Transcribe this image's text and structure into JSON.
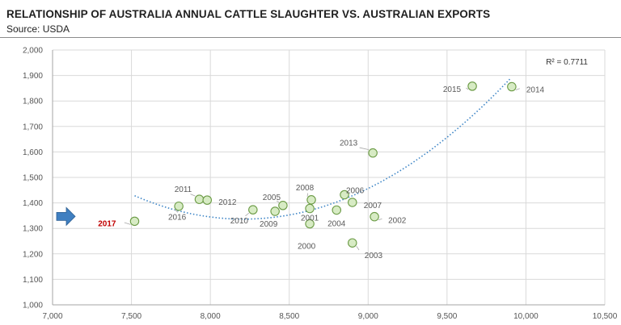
{
  "header": {
    "title": "RELATIONSHIP OF AUSTRALIA ANNUAL CATTLE SLAUGHTER VS. AUSTRALIAN EXPORTS",
    "source": "Source:  USDA"
  },
  "chart_data": {
    "type": "scatter",
    "title": "RELATIONSHIP OF AUSTRALIA ANNUAL CATTLE SLAUGHTER VS. AUSTRALIAN EXPORTS",
    "xlim": [
      7000,
      10500
    ],
    "ylim": [
      1000,
      2000
    ],
    "x_ticks": [
      "7,000",
      "7,500",
      "8,000",
      "8,500",
      "9,000",
      "9,500",
      "10,000",
      "10,500"
    ],
    "y_ticks": [
      "1,000",
      "1,100",
      "1,200",
      "1,300",
      "1,400",
      "1,500",
      "1,600",
      "1,700",
      "1,800",
      "1,900",
      "2,000"
    ],
    "grid": true,
    "r_squared": "R² = 0.7711",
    "trendline": {
      "type": "polynomial",
      "order": 2,
      "x_range": [
        7520,
        9900
      ]
    },
    "highlight_year": "2017",
    "marker_color": "#d7ebc4",
    "marker_edge_color": "#6a9a44",
    "trend_color": "#3d85c6",
    "arrow_color": "#3f7fc1",
    "points": [
      {
        "year": "2000",
        "x": 8630,
        "y": 1318
      },
      {
        "year": "2001",
        "x": 8630,
        "y": 1378
      },
      {
        "year": "2002",
        "x": 9040,
        "y": 1346
      },
      {
        "year": "2003",
        "x": 8900,
        "y": 1243
      },
      {
        "year": "2004",
        "x": 8800,
        "y": 1372
      },
      {
        "year": "2005",
        "x": 8460,
        "y": 1390
      },
      {
        "year": "2006",
        "x": 8850,
        "y": 1432
      },
      {
        "year": "2007",
        "x": 8900,
        "y": 1402
      },
      {
        "year": "2008",
        "x": 8640,
        "y": 1412
      },
      {
        "year": "2009",
        "x": 8410,
        "y": 1367
      },
      {
        "year": "2010",
        "x": 8270,
        "y": 1373
      },
      {
        "year": "2011",
        "x": 7930,
        "y": 1414
      },
      {
        "year": "2012",
        "x": 7980,
        "y": 1411
      },
      {
        "year": "2013",
        "x": 9030,
        "y": 1596
      },
      {
        "year": "2014",
        "x": 9910,
        "y": 1856
      },
      {
        "year": "2015",
        "x": 9660,
        "y": 1858
      },
      {
        "year": "2016",
        "x": 7800,
        "y": 1387
      },
      {
        "year": "2017",
        "x": 7520,
        "y": 1328
      }
    ]
  }
}
